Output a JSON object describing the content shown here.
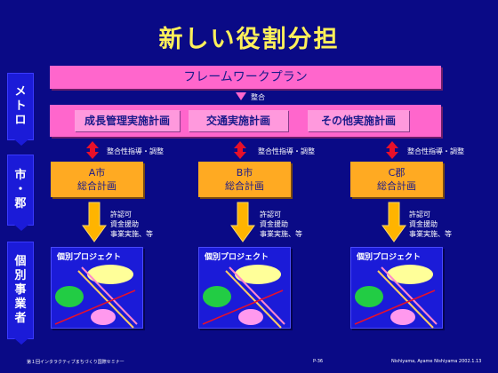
{
  "title": "新しい役割分担",
  "side_labels": {
    "metro": [
      "メ",
      "ト",
      "ロ"
    ],
    "city": [
      "市",
      "・",
      "郡"
    ],
    "individual": [
      "個",
      "別",
      "事",
      "業",
      "者"
    ]
  },
  "framework_plan": "フレームワークプラン",
  "consistency": "整合",
  "plans": [
    "成長管理実施計画",
    "交通実施計画",
    "その他実施計画"
  ],
  "guidance_label": "整合性指導・調整",
  "municipal_plans": [
    {
      "line1": "A市",
      "line2": "総合計画"
    },
    {
      "line1": "B市",
      "line2": "総合計画"
    },
    {
      "line1": "C郡",
      "line2": "総合計画"
    }
  ],
  "notes": [
    "許認可",
    "資金援助",
    "事業実施、等"
  ],
  "project_label": "個別プロジェクト",
  "footer": {
    "left": "第１回インタラクティブまちづくり国際セミナー",
    "center": "P-36",
    "right": "Nishiyama, Ayame Nishiyama 2002.1.13"
  },
  "colors": {
    "background": "#0a0a86",
    "title": "#fff05a",
    "pink": "#ff66cc",
    "orange": "#ffaa22",
    "red_arrow": "#e8102a",
    "yellow_arrow": "#ffb400",
    "ellipse_yellow": "#ffff99",
    "ellipse_green": "#22cc44",
    "ellipse_pink": "#ff99ee"
  }
}
